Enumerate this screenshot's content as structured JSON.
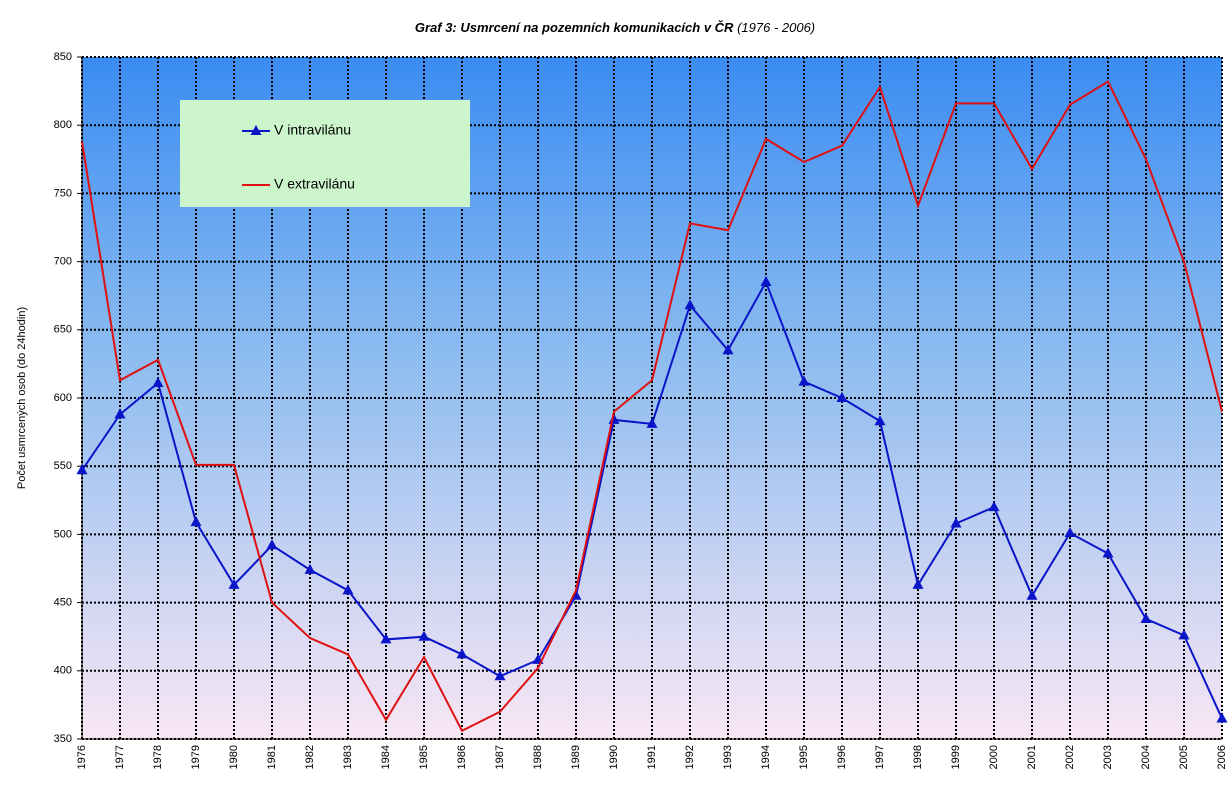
{
  "chart_data": {
    "type": "line",
    "title": "Graf 3: Usmrcení na pozemních komunikacích v ČR",
    "subtitle": "(1976 - 2006)",
    "y_label": "Počet usmrcených osob (do 24hodin)",
    "categories": [
      "1976",
      "1977",
      "1978",
      "1979",
      "1980",
      "1981",
      "1982",
      "1983",
      "1984",
      "1985",
      "1986",
      "1987",
      "1988",
      "1989",
      "1990",
      "1991",
      "1992",
      "1993",
      "1994",
      "1995",
      "1996",
      "1997",
      "1998",
      "1999",
      "2000",
      "2001",
      "2002",
      "2003",
      "2004",
      "2005",
      "2006"
    ],
    "series": [
      {
        "name": "V intravilánu",
        "color": "#0a14c8",
        "marker": "triangle",
        "values": [
          547,
          588,
          611,
          509,
          463,
          492,
          474,
          459,
          423,
          425,
          412,
          396,
          408,
          455,
          584,
          581,
          668,
          635,
          685,
          612,
          600,
          583,
          463,
          508,
          520,
          455,
          501,
          486,
          438,
          426,
          365
        ]
      },
      {
        "name": "V extravilánu",
        "color": "#e01010",
        "marker": "none",
        "values": [
          788,
          613,
          628,
          551,
          551,
          450,
          424,
          412,
          364,
          410,
          356,
          370,
          402,
          459,
          590,
          613,
          728,
          723,
          790,
          773,
          785,
          828,
          741,
          816,
          816,
          768,
          815,
          832,
          775,
          700,
          590
        ]
      }
    ],
    "ylim": [
      350,
      850
    ],
    "yticks": [
      350,
      400,
      450,
      500,
      550,
      600,
      650,
      700,
      750,
      800,
      850
    ],
    "grid": true
  }
}
